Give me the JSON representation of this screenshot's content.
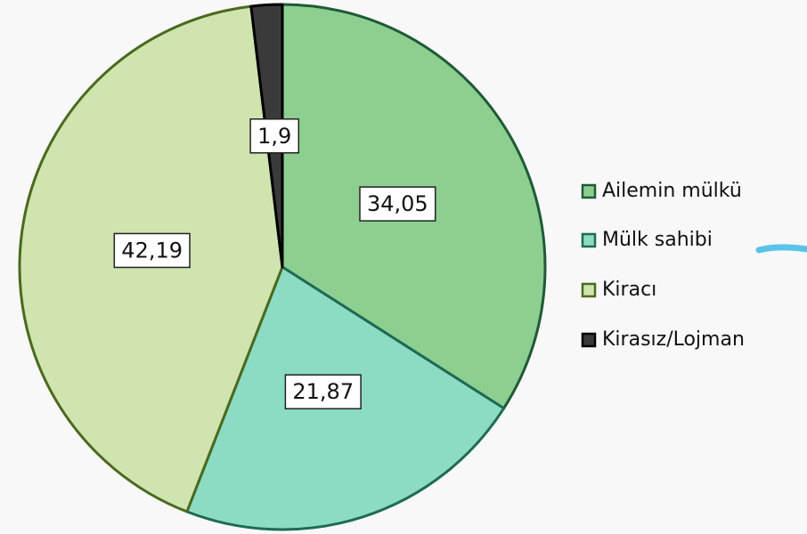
{
  "chart_data": {
    "type": "pie",
    "categories": [
      "Ailemin mülkü",
      "Mülk sahibi",
      "Kiracı",
      "Kirasız/Lojman"
    ],
    "values": [
      34.05,
      21.87,
      42.19,
      1.9
    ],
    "value_labels": [
      "34,05",
      "21,87",
      "42,19",
      "1,9"
    ],
    "colors": [
      "#8ccf90",
      "#8cdcc4",
      "#cfe4ae",
      "#3a3a3a"
    ],
    "legend": "right"
  }
}
